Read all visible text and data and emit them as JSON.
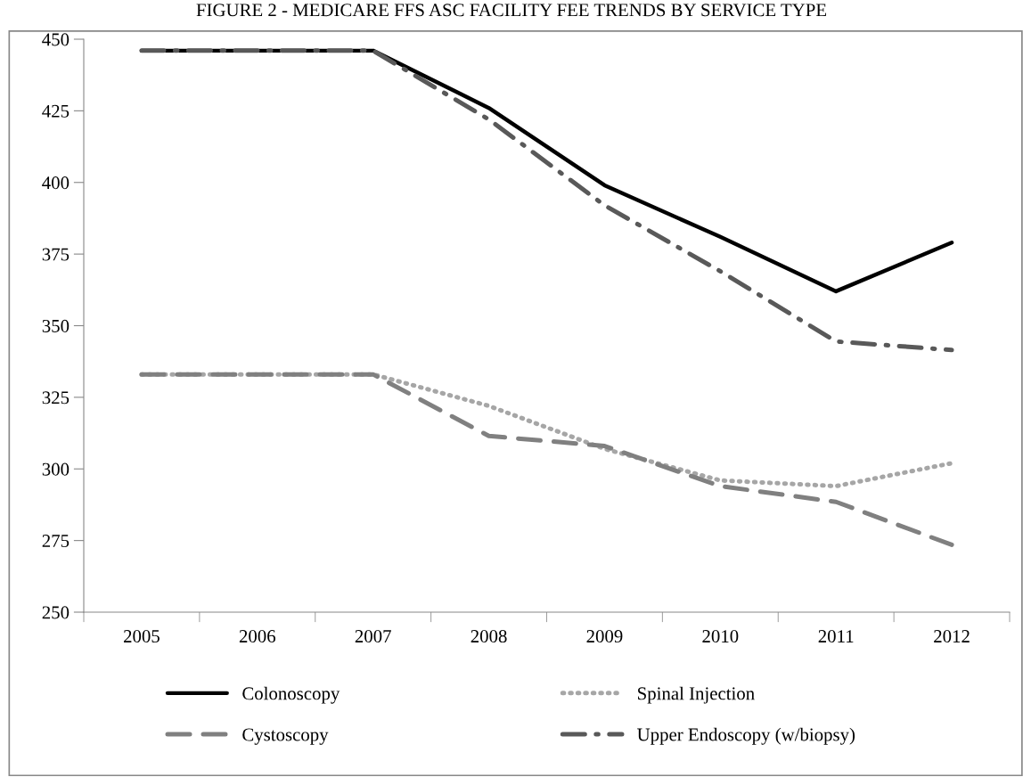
{
  "chart_data": {
    "type": "line",
    "title": "FIGURE 2 - MEDICARE FFS ASC FACILITY FEE TRENDS BY SERVICE TYPE",
    "categories": [
      "2005",
      "2006",
      "2007",
      "2008",
      "2009",
      "2010",
      "2011",
      "2012"
    ],
    "series": [
      {
        "name": "Colonoscopy",
        "color": "#000000",
        "line_style": "solid",
        "values": [
          446,
          446,
          446,
          426,
          399,
          381,
          362,
          379
        ]
      },
      {
        "name": "Spinal Injection",
        "color": "#a6a6a6",
        "line_style": "dotted",
        "values": [
          333,
          333,
          333,
          322,
          307,
          296,
          294,
          302
        ]
      },
      {
        "name": "Cystoscopy",
        "color": "#808080",
        "line_style": "dashed",
        "values": [
          333,
          333,
          333,
          311.5,
          308,
          294,
          288.5,
          273.5
        ]
      },
      {
        "name": "Upper Endoscopy (w/biopsy)",
        "color": "#595959",
        "line_style": "dashdot",
        "values": [
          446,
          446,
          446,
          422,
          392,
          369,
          344.5,
          341.5
        ]
      }
    ],
    "ylim": [
      250,
      450
    ],
    "yticks": [
      250,
      275,
      300,
      325,
      350,
      375,
      400,
      425,
      450
    ],
    "grid": false,
    "legend": "bottom",
    "marker": "none"
  }
}
